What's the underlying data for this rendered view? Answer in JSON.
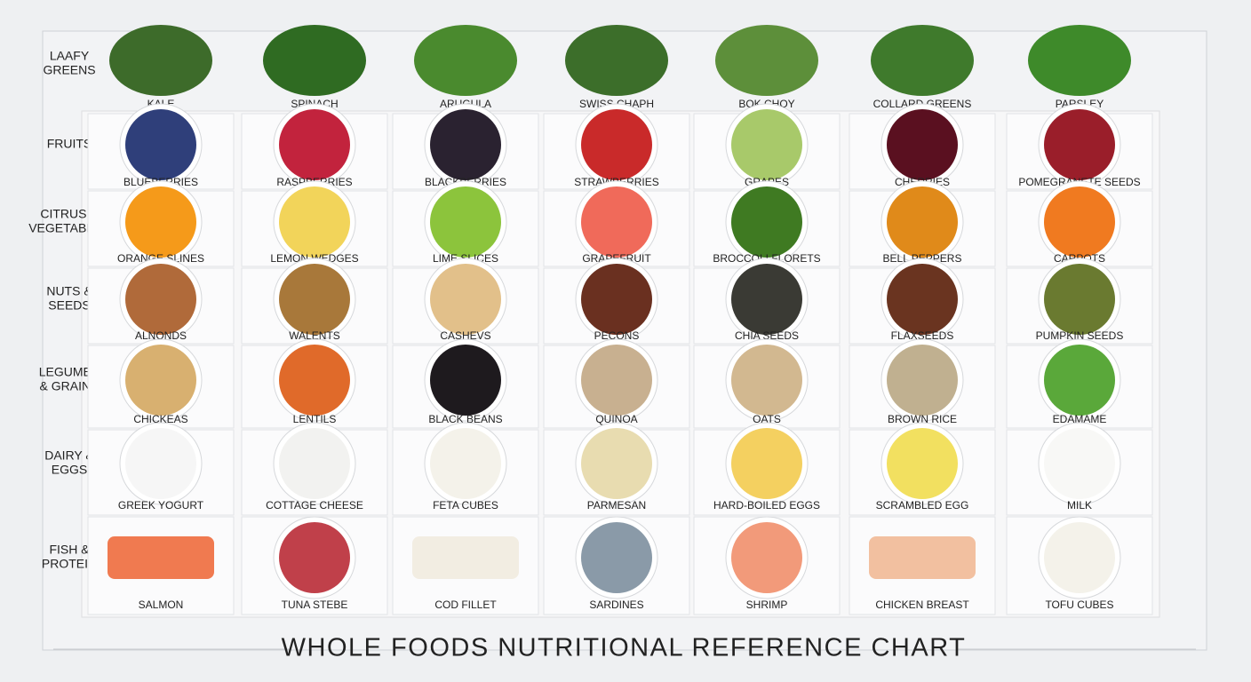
{
  "title": "WHOLE FOODS NUTRITIONAL REFERENCE CHART",
  "rows": [
    {
      "label": [
        "LAAFY",
        "GREENS"
      ],
      "items": [
        "KALE",
        "SPINACH",
        "ARUGULA",
        "SWISS CHAPH",
        "BOK CHOY",
        "COLLARD GREENS",
        "PARSLEY"
      ]
    },
    {
      "label": [
        "FRUITS"
      ],
      "items": [
        "BLUEBERRIES",
        "RASPBERRIES",
        "BLACKBERRIES",
        "STRAWBERRIES",
        "GRAPES",
        "CHERRIES",
        "POMEGRANETE SEEDS"
      ]
    },
    {
      "label": [
        "CITRUS &",
        "VEGETABLES"
      ],
      "items": [
        "ORANGE SLINES",
        "LEMON WEDGES",
        "LIME SLICES",
        "GRAPEFRUIT",
        "BROCCOLI FLORETS",
        "BELL PEPPERS",
        "CARPOTS"
      ]
    },
    {
      "label": [
        "NUTS &",
        "SEEDS"
      ],
      "items": [
        "ALNONDS",
        "WALENTS",
        "CASHEVS",
        "PECONS",
        "CHIA SEEDS",
        "FLAXSEEDS",
        "PUMPKIN SEEDS"
      ]
    },
    {
      "label": [
        "LEGUMES",
        "& GRAINS"
      ],
      "items": [
        "CHICKEAS",
        "LENTILS",
        "BLACK BEANS",
        "QUINOA",
        "OATS",
        "BROWN RICE",
        "EDAMAME"
      ]
    },
    {
      "label": [
        "DAIRY &",
        "EGGS"
      ],
      "items": [
        "GREEK YOGURT",
        "COTTAGE CHEESE",
        "FETA CUBES",
        "PARMESAN",
        "HARD-BOILED EGGS",
        "SCRAMBLED EGG",
        "MILK"
      ]
    },
    {
      "label": [
        "FISH &",
        "PROTEIN"
      ],
      "items": [
        "SALMON",
        "TUNA STEBE",
        "COD FILLET",
        "SARDINES",
        "SHRIMP",
        "CHICKEN BREAST",
        "TOFU CUBES"
      ]
    }
  ]
}
